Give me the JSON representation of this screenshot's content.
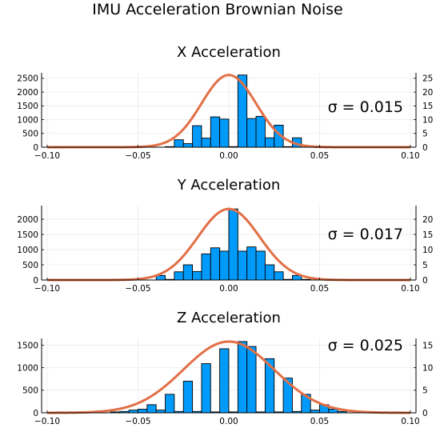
{
  "figure_title": "IMU Acceleration Brownian Noise",
  "chart_data": [
    {
      "type": "bar",
      "title": "X Acceleration",
      "annotation": "σ = 0.015",
      "xlim": [
        -0.1,
        0.1
      ],
      "ylim": [
        0,
        2700
      ],
      "y2lim": [
        0,
        27
      ],
      "xticks": [
        "−0.10",
        "−0.05",
        "0.00",
        "0.05",
        "0.10"
      ],
      "xtick_values": [
        -0.1,
        -0.05,
        0.0,
        0.05,
        0.1
      ],
      "yticks": [
        "0",
        "500",
        "1000",
        "1500",
        "2000",
        "2500"
      ],
      "ytick_values": [
        0,
        500,
        1000,
        1500,
        2000,
        2500
      ],
      "y2ticks": [
        "0",
        "5",
        "10",
        "15",
        "20",
        "25"
      ],
      "y2tick_values": [
        0,
        5,
        10,
        15,
        20,
        25
      ],
      "bin_width": 0.005,
      "bins_left": [
        -0.035,
        -0.03,
        -0.025,
        -0.02,
        -0.015,
        -0.01,
        -0.005,
        0.0,
        0.005,
        0.01,
        0.015,
        0.02,
        0.025,
        0.03,
        0.035
      ],
      "values": [
        20,
        270,
        130,
        780,
        330,
        1100,
        1020,
        20,
        2620,
        1040,
        1120,
        340,
        800,
        20,
        340
      ],
      "curve": {
        "mean": 0.0,
        "sigma": 0.015,
        "peak": 26.2
      },
      "grid": true,
      "legend": "none"
    },
    {
      "type": "bar",
      "title": "Y Acceleration",
      "annotation": "σ = 0.017",
      "xlim": [
        -0.1,
        0.1
      ],
      "ylim": [
        0,
        2450
      ],
      "y2lim": [
        0,
        24.5
      ],
      "xticks": [
        "−0.10",
        "−0.05",
        "0.00",
        "0.05",
        "0.10"
      ],
      "xtick_values": [
        -0.1,
        -0.05,
        0.0,
        0.05,
        0.1
      ],
      "yticks": [
        "0",
        "500",
        "1000",
        "1500",
        "2000"
      ],
      "ytick_values": [
        0,
        500,
        1000,
        1500,
        2000
      ],
      "y2ticks": [
        "0",
        "5",
        "10",
        "15",
        "20"
      ],
      "y2tick_values": [
        0,
        5,
        10,
        15,
        20
      ],
      "bin_width": 0.005,
      "bins_left": [
        -0.04,
        -0.035,
        -0.03,
        -0.025,
        -0.02,
        -0.015,
        -0.01,
        -0.005,
        0.0,
        0.005,
        0.01,
        0.015,
        0.02,
        0.025,
        0.03,
        0.035,
        0.04
      ],
      "values": [
        150,
        20,
        270,
        500,
        280,
        860,
        1060,
        950,
        2340,
        950,
        1090,
        950,
        500,
        270,
        20,
        150,
        20
      ],
      "curve": {
        "mean": 0.0,
        "sigma": 0.017,
        "peak": 23.4
      },
      "grid": true,
      "legend": "none"
    },
    {
      "type": "bar",
      "title": "Z Acceleration",
      "annotation": "σ = 0.025",
      "xlim": [
        -0.1,
        0.1
      ],
      "ylim": [
        0,
        1650
      ],
      "y2lim": [
        0,
        16.5
      ],
      "xticks": [
        "−0.10",
        "−0.05",
        "0.00",
        "0.05",
        "0.10"
      ],
      "xtick_values": [
        -0.1,
        -0.05,
        0.0,
        0.05,
        0.1
      ],
      "yticks": [
        "0",
        "500",
        "1000",
        "1500"
      ],
      "ytick_values": [
        0,
        500,
        1000,
        1500
      ],
      "y2ticks": [
        "0",
        "5",
        "10",
        "15"
      ],
      "y2tick_values": [
        0,
        5,
        10,
        15
      ],
      "bin_width": 0.005,
      "bins_left": [
        -0.065,
        -0.06,
        -0.055,
        -0.05,
        -0.045,
        -0.04,
        -0.035,
        -0.03,
        -0.025,
        -0.02,
        -0.015,
        -0.01,
        -0.005,
        0.0,
        0.005,
        0.01,
        0.015,
        0.02,
        0.025,
        0.03,
        0.035,
        0.04,
        0.045,
        0.05,
        0.055,
        0.06
      ],
      "values": [
        20,
        30,
        60,
        80,
        180,
        60,
        410,
        30,
        700,
        30,
        1090,
        20,
        1420,
        20,
        1580,
        1470,
        20,
        1200,
        20,
        770,
        30,
        410,
        60,
        180,
        80,
        30
      ],
      "curve": {
        "mean": 0.0,
        "sigma": 0.025,
        "peak": 15.8
      },
      "grid": true,
      "legend": "none"
    }
  ],
  "colors": {
    "bar_fill": "#009AFA",
    "bar_stroke": "#000000",
    "curve": "#E26F46",
    "grid": "#EBEBEB",
    "axis": "#000000"
  }
}
